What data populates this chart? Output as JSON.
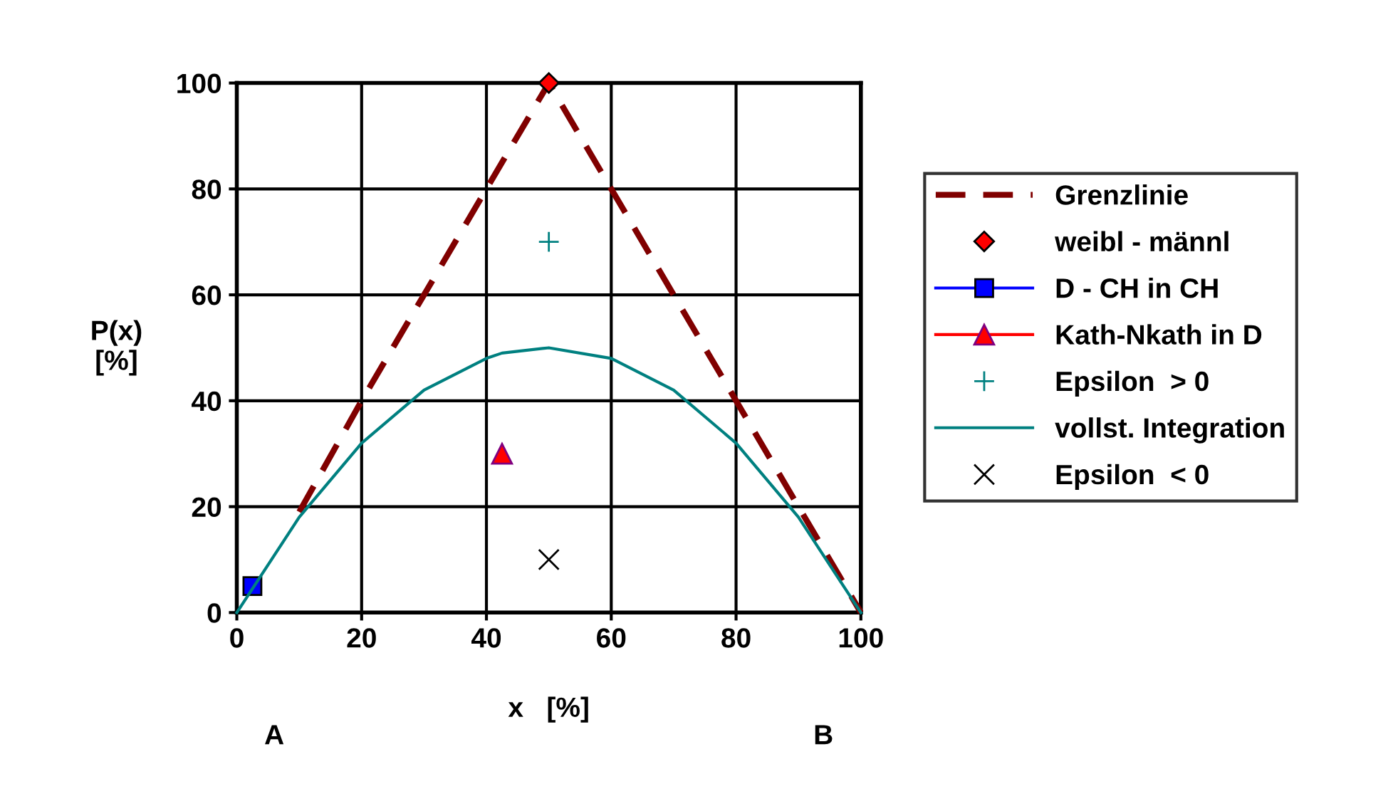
{
  "chart_data": {
    "type": "line",
    "ylabel": "P(x)\n[%]",
    "xlabel": "x   [%]",
    "xlim": [
      0,
      100
    ],
    "ylim": [
      0,
      100
    ],
    "xticks": [
      0,
      20,
      40,
      60,
      80,
      100
    ],
    "yticks": [
      0,
      20,
      40,
      60,
      80,
      100
    ],
    "grid": true,
    "legend": "right",
    "annotations": [
      "A",
      "B"
    ],
    "series": [
      {
        "name": "Grenzlinie",
        "color": "#800000",
        "line_style": "dashed",
        "marker": "none",
        "x": [
          10,
          20,
          30,
          40,
          50,
          60,
          70,
          80,
          90,
          100
        ],
        "values": [
          19,
          40,
          60,
          80,
          100,
          80,
          60,
          40,
          20,
          0
        ]
      },
      {
        "name": "weibl - männl",
        "type": "scatter",
        "color": "#ff0000",
        "marker": "diamond",
        "x": [
          50
        ],
        "values": [
          100
        ]
      },
      {
        "name": "D - CH in CH",
        "color": "#0000ff",
        "marker": "square",
        "x": [
          2.5
        ],
        "values": [
          5
        ]
      },
      {
        "name": "Kath-Nkath in D",
        "color": "#ff0000",
        "marker": "triangle",
        "x": [
          42.5
        ],
        "values": [
          30
        ]
      },
      {
        "name": "Epsilon  > 0",
        "type": "scatter",
        "color": "#008080",
        "marker": "plus",
        "x": [
          50
        ],
        "values": [
          70
        ]
      },
      {
        "name": "vollst. Integration",
        "color": "#008080",
        "marker": "none",
        "line_style": "solid",
        "x": [
          0,
          10,
          20,
          30,
          40,
          42.5,
          50,
          60,
          70,
          80,
          90,
          100
        ],
        "values": [
          0,
          18,
          32,
          42,
          48,
          49,
          50,
          48,
          42,
          32,
          18,
          0
        ]
      },
      {
        "name": "Epsilon  < 0",
        "type": "scatter",
        "color": "#000000",
        "marker": "cross",
        "x": [
          50
        ],
        "values": [
          10
        ]
      }
    ]
  }
}
